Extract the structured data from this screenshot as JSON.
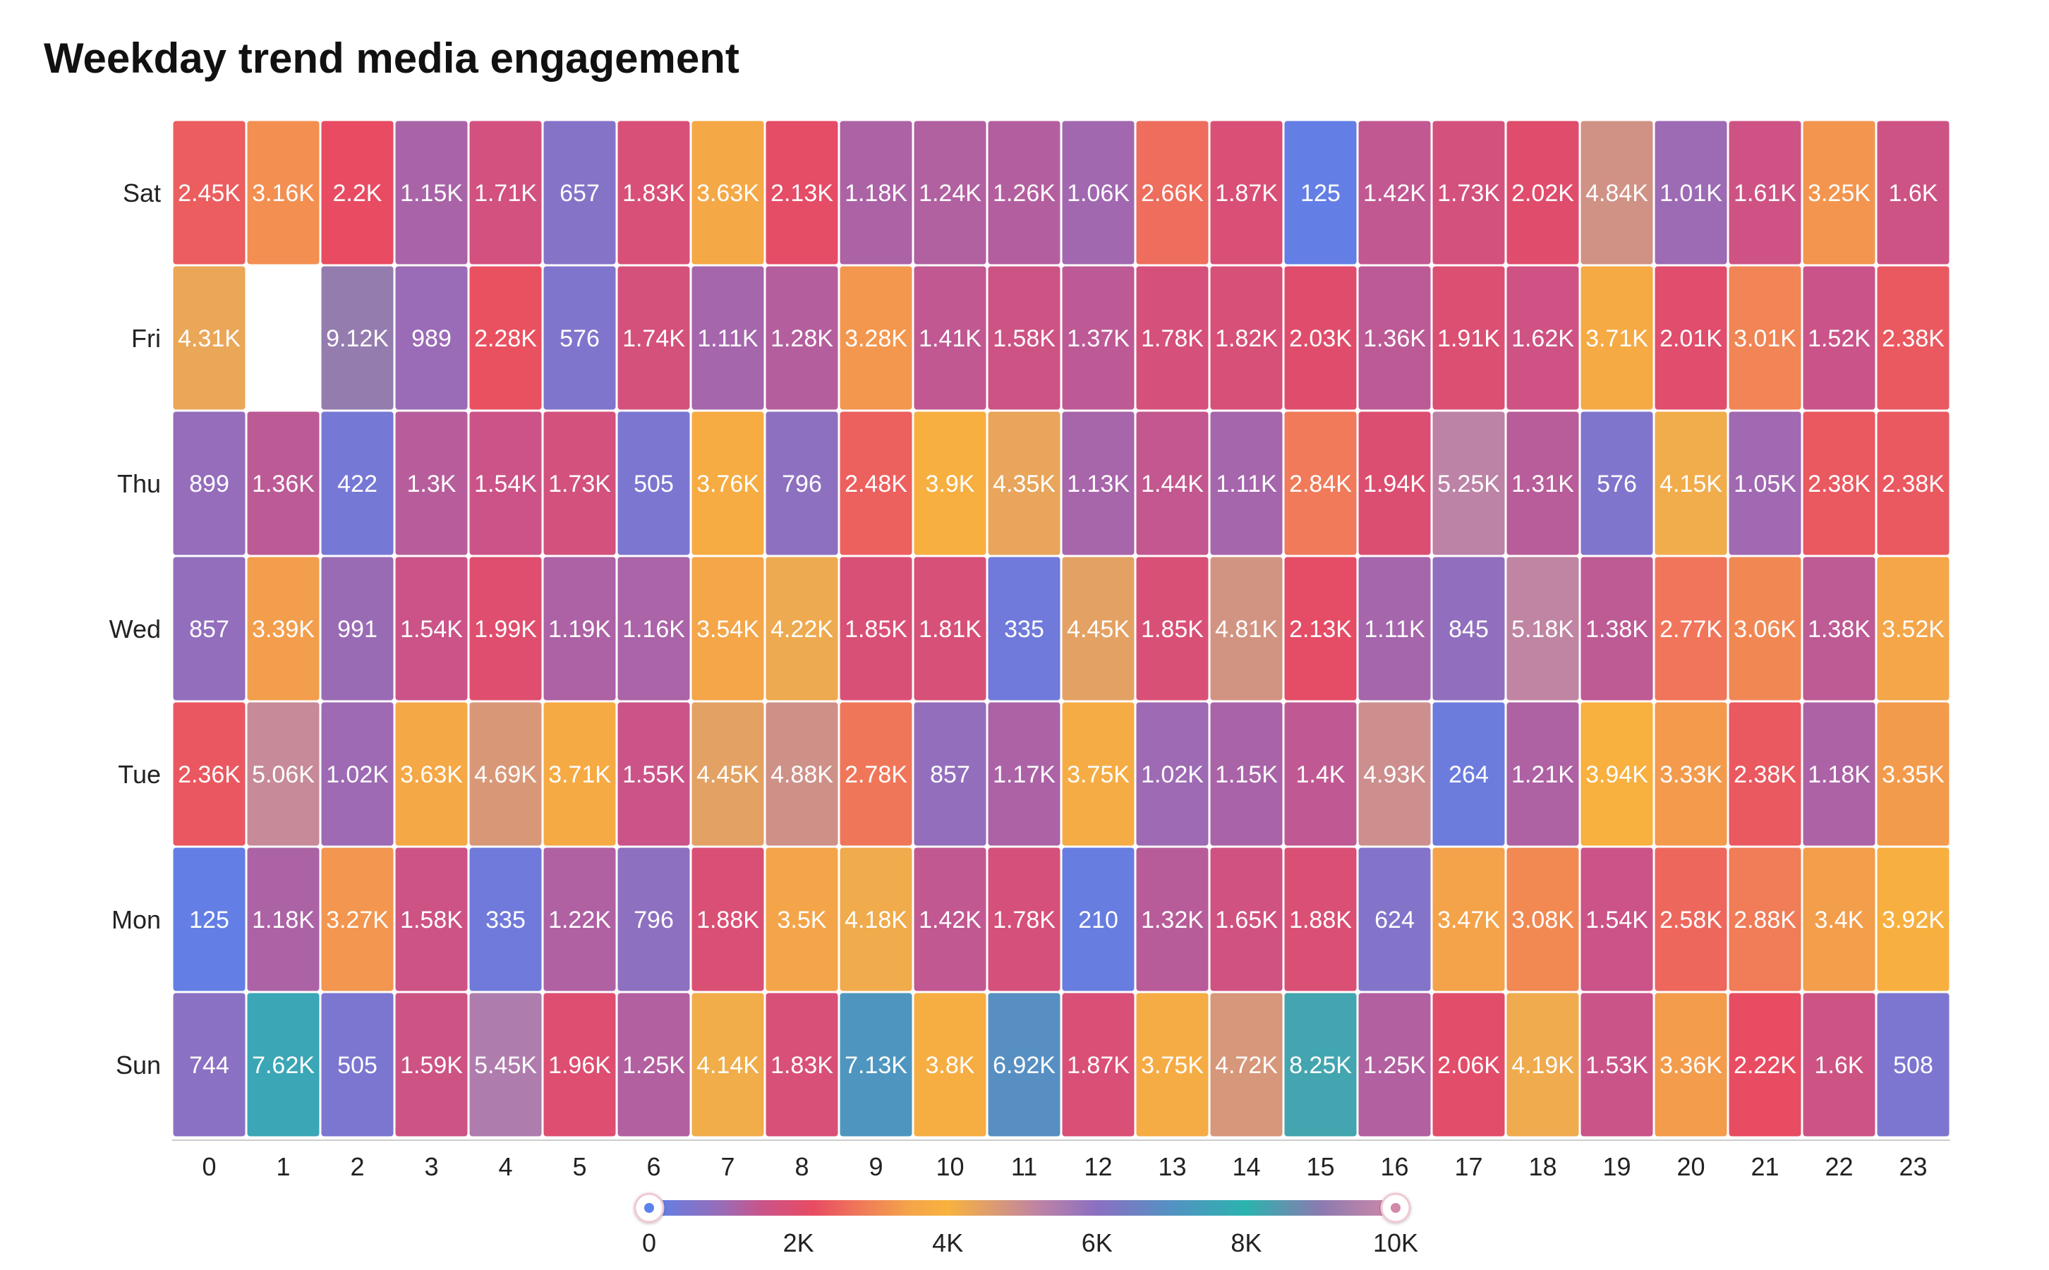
{
  "chart_data": {
    "type": "heatmap",
    "title": "Weekday trend media engagement",
    "x_categories": [
      "0",
      "1",
      "2",
      "3",
      "4",
      "5",
      "6",
      "7",
      "8",
      "9",
      "10",
      "11",
      "12",
      "13",
      "14",
      "15",
      "16",
      "17",
      "18",
      "19",
      "20",
      "21",
      "22",
      "23"
    ],
    "y_categories": [
      "Sat",
      "Fri",
      "Thu",
      "Wed",
      "Tue",
      "Mon",
      "Sun"
    ],
    "values": [
      [
        2450,
        3160,
        2200,
        1150,
        1710,
        657,
        1830,
        3630,
        2130,
        1180,
        1240,
        1260,
        1060,
        2660,
        1870,
        125,
        1420,
        1730,
        2020,
        4840,
        1010,
        1610,
        3250,
        1600
      ],
      [
        4310,
        null,
        9120,
        989,
        2280,
        576,
        1740,
        1110,
        1280,
        3280,
        1410,
        1580,
        1370,
        1780,
        1820,
        2030,
        1360,
        1910,
        1620,
        3710,
        2010,
        3010,
        1520,
        2380
      ],
      [
        899,
        1360,
        422,
        1300,
        1540,
        1730,
        505,
        3760,
        796,
        2480,
        3900,
        4350,
        1130,
        1440,
        1110,
        2840,
        1940,
        5250,
        1310,
        576,
        4150,
        1050,
        2380,
        2380
      ],
      [
        857,
        3390,
        991,
        1540,
        1990,
        1190,
        1160,
        3540,
        4220,
        1850,
        1810,
        335,
        4450,
        1850,
        4810,
        2130,
        1110,
        845,
        5180,
        1380,
        2770,
        3060,
        1380,
        3520
      ],
      [
        2360,
        5060,
        1020,
        3630,
        4690,
        3710,
        1550,
        4450,
        4880,
        2780,
        857,
        1170,
        3750,
        1020,
        1150,
        1400,
        4930,
        264,
        1210,
        3940,
        3330,
        2380,
        1180,
        3350
      ],
      [
        125,
        1180,
        3270,
        1580,
        335,
        1220,
        796,
        1880,
        3500,
        4180,
        1420,
        1780,
        210,
        1320,
        1650,
        1880,
        624,
        3470,
        3080,
        1540,
        2580,
        2880,
        3400,
        3920
      ],
      [
        744,
        7620,
        505,
        1590,
        5450,
        1960,
        1250,
        4140,
        1830,
        7130,
        3800,
        6920,
        1870,
        3750,
        4720,
        8250,
        1250,
        2060,
        4190,
        1530,
        3360,
        2220,
        1600,
        508
      ]
    ],
    "labels": [
      [
        "2.45K",
        "3.16K",
        "2.2K",
        "1.15K",
        "1.71K",
        "657",
        "1.83K",
        "3.63K",
        "2.13K",
        "1.18K",
        "1.24K",
        "1.26K",
        "1.06K",
        "2.66K",
        "1.87K",
        "125",
        "1.42K",
        "1.73K",
        "2.02K",
        "4.84K",
        "1.01K",
        "1.61K",
        "3.25K",
        "1.6K"
      ],
      [
        "4.31K",
        "",
        "9.12K",
        "989",
        "2.28K",
        "576",
        "1.74K",
        "1.11K",
        "1.28K",
        "3.28K",
        "1.41K",
        "1.58K",
        "1.37K",
        "1.78K",
        "1.82K",
        "2.03K",
        "1.36K",
        "1.91K",
        "1.62K",
        "3.71K",
        "2.01K",
        "3.01K",
        "1.52K",
        "2.38K"
      ],
      [
        "899",
        "1.36K",
        "422",
        "1.3K",
        "1.54K",
        "1.73K",
        "505",
        "3.76K",
        "796",
        "2.48K",
        "3.9K",
        "4.35K",
        "1.13K",
        "1.44K",
        "1.11K",
        "2.84K",
        "1.94K",
        "5.25K",
        "1.31K",
        "576",
        "4.15K",
        "1.05K",
        "2.38K",
        "2.38K"
      ],
      [
        "857",
        "3.39K",
        "991",
        "1.54K",
        "1.99K",
        "1.19K",
        "1.16K",
        "3.54K",
        "4.22K",
        "1.85K",
        "1.81K",
        "335",
        "4.45K",
        "1.85K",
        "4.81K",
        "2.13K",
        "1.11K",
        "845",
        "5.18K",
        "1.38K",
        "2.77K",
        "3.06K",
        "1.38K",
        "3.52K"
      ],
      [
        "2.36K",
        "5.06K",
        "1.02K",
        "3.63K",
        "4.69K",
        "3.71K",
        "1.55K",
        "4.45K",
        "4.88K",
        "2.78K",
        "857",
        "1.17K",
        "3.75K",
        "1.02K",
        "1.15K",
        "1.4K",
        "4.93K",
        "264",
        "1.21K",
        "3.94K",
        "3.33K",
        "2.38K",
        "1.18K",
        "3.35K"
      ],
      [
        "125",
        "1.18K",
        "3.27K",
        "1.58K",
        "335",
        "1.22K",
        "796",
        "1.88K",
        "3.5K",
        "4.18K",
        "1.42K",
        "1.78K",
        "210",
        "1.32K",
        "1.65K",
        "1.88K",
        "624",
        "3.47K",
        "3.08K",
        "1.54K",
        "2.58K",
        "2.88K",
        "3.4K",
        "3.92K"
      ],
      [
        "744",
        "7.62K",
        "505",
        "1.59K",
        "5.45K",
        "1.96K",
        "1.25K",
        "4.14K",
        "1.83K",
        "7.13K",
        "3.8K",
        "6.92K",
        "1.87K",
        "3.75K",
        "4.72K",
        "8.25K",
        "1.25K",
        "2.06K",
        "4.19K",
        "1.53K",
        "3.36K",
        "2.22K",
        "1.6K",
        "508"
      ]
    ],
    "color_scale": {
      "range": [
        0,
        10000
      ],
      "ticks": [
        "0",
        "2K",
        "4K",
        "6K",
        "8K",
        "10K"
      ],
      "tick_values": [
        0,
        2000,
        4000,
        6000,
        8000,
        10000
      ],
      "stops": [
        {
          "value": 0,
          "color": "#5b82ec"
        },
        {
          "value": 1000,
          "color": "#9b6bb5"
        },
        {
          "value": 1500,
          "color": "#c9548a"
        },
        {
          "value": 2200,
          "color": "#e84b62"
        },
        {
          "value": 2800,
          "color": "#f0775a"
        },
        {
          "value": 3500,
          "color": "#f4a549"
        },
        {
          "value": 4000,
          "color": "#f8b23e"
        },
        {
          "value": 4600,
          "color": "#dc9c70"
        },
        {
          "value": 5200,
          "color": "#bf84a4"
        },
        {
          "value": 6000,
          "color": "#8b6fc2"
        },
        {
          "value": 7000,
          "color": "#5392c2"
        },
        {
          "value": 8000,
          "color": "#2bb3ae"
        },
        {
          "value": 9000,
          "color": "#8c7ab0"
        },
        {
          "value": 10000,
          "color": "#d389a8"
        }
      ]
    },
    "legend_placement": "bottom",
    "grid": false
  }
}
